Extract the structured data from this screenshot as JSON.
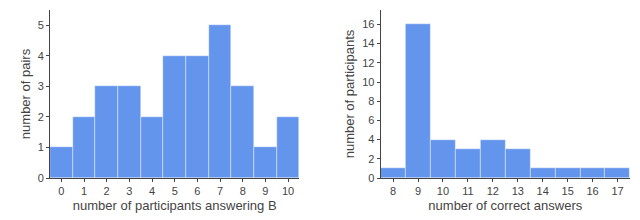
{
  "chart_data": [
    {
      "type": "bar",
      "x": [
        0,
        1,
        2,
        3,
        4,
        5,
        6,
        7,
        8,
        9,
        10
      ],
      "values": [
        1,
        2,
        3,
        3,
        2,
        4,
        4,
        5,
        3,
        1,
        2
      ],
      "xlabel": "number of participants answering B",
      "ylabel": "number of pairs",
      "xlim": [
        -0.5,
        10.5
      ],
      "xticks": [
        0,
        1,
        2,
        3,
        4,
        5,
        6,
        7,
        8,
        9,
        10
      ],
      "ylim": [
        0,
        5.5
      ],
      "yticks": [
        0,
        1,
        2,
        3,
        4,
        5
      ],
      "color": "#6495ED",
      "grid": false
    },
    {
      "type": "bar",
      "x": [
        8,
        9,
        10,
        11,
        12,
        13,
        14,
        15,
        16,
        17
      ],
      "values": [
        1,
        16,
        4,
        3,
        4,
        3,
        1,
        1,
        1,
        1
      ],
      "xlabel": "number of correct answers",
      "ylabel": "number of participants",
      "xlim": [
        7.5,
        17.5
      ],
      "xticks": [
        8,
        9,
        10,
        11,
        12,
        13,
        14,
        15,
        16,
        17
      ],
      "ylim": [
        0,
        17.5
      ],
      "yticks": [
        0,
        2,
        4,
        6,
        8,
        10,
        12,
        14,
        16
      ],
      "color": "#6495ED",
      "grid": false
    }
  ]
}
